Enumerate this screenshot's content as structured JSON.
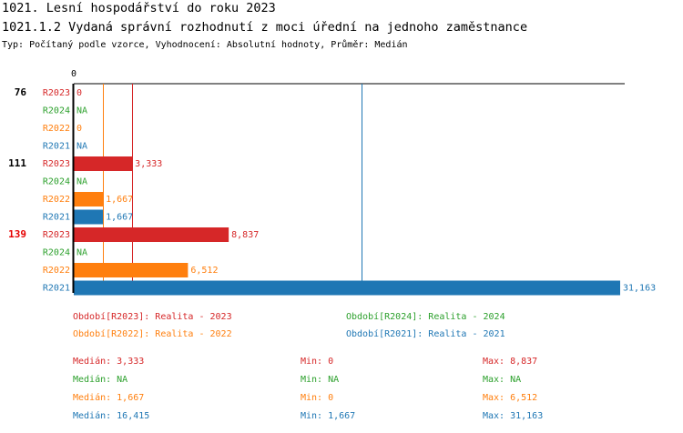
{
  "header": {
    "title": "1021. Lesní hospodářství do roku 2023",
    "subtitle": "1021.1.2 Vydaná správní rozhodnutí z moci úřední na jednoho zaměstnance",
    "type_line": "Typ: Počítaný podle vzorce, Vyhodnocení: Absolutní hodnoty, Průměr: Medián"
  },
  "colors": {
    "R2023": "#d62728",
    "R2024": "#2ca02c",
    "R2022": "#ff7f0e",
    "R2021": "#1f77b4",
    "highlight": "#e60000",
    "axis": "#000000"
  },
  "chart_data": {
    "type": "bar",
    "orientation": "horizontal",
    "axis_zero_label": "0",
    "xlim": [
      0,
      31163
    ],
    "series_order": [
      "R2023",
      "R2024",
      "R2022",
      "R2021"
    ],
    "groups": [
      {
        "label": "76",
        "highlight": false,
        "bars": [
          {
            "series": "R2023",
            "value": 0,
            "label": "0"
          },
          {
            "series": "R2024",
            "value": null,
            "label": "NA"
          },
          {
            "series": "R2022",
            "value": 0,
            "label": "0"
          },
          {
            "series": "R2021",
            "value": null,
            "label": "NA"
          }
        ]
      },
      {
        "label": "111",
        "highlight": false,
        "bars": [
          {
            "series": "R2023",
            "value": 3333,
            "label": "3,333"
          },
          {
            "series": "R2024",
            "value": null,
            "label": "NA"
          },
          {
            "series": "R2022",
            "value": 1667,
            "label": "1,667"
          },
          {
            "series": "R2021",
            "value": 1667,
            "label": "1,667"
          }
        ]
      },
      {
        "label": "139",
        "highlight": true,
        "bars": [
          {
            "series": "R2023",
            "value": 8837,
            "label": "8,837"
          },
          {
            "series": "R2024",
            "value": null,
            "label": "NA"
          },
          {
            "series": "R2022",
            "value": 6512,
            "label": "6,512"
          },
          {
            "series": "R2021",
            "value": 31163,
            "label": "31,163"
          }
        ]
      }
    ],
    "median_lines": [
      {
        "series": "R2023",
        "value": 3333
      },
      {
        "series": "R2022",
        "value": 1667
      },
      {
        "series": "R2021",
        "value": 16415
      }
    ]
  },
  "legend": [
    {
      "series": "R2023",
      "text": "Období[R2023]: Realita - 2023"
    },
    {
      "series": "R2024",
      "text": "Období[R2024]: Realita - 2024"
    },
    {
      "series": "R2022",
      "text": "Období[R2022]: Realita - 2022"
    },
    {
      "series": "R2021",
      "text": "Období[R2021]: Realita - 2021"
    }
  ],
  "stats": [
    {
      "series": "R2023",
      "median": "Medián: 3,333",
      "min": "Min: 0",
      "max": "Max: 8,837"
    },
    {
      "series": "R2024",
      "median": "Medián: NA",
      "min": "Min: NA",
      "max": "Max: NA"
    },
    {
      "series": "R2022",
      "median": "Medián: 1,667",
      "min": "Min: 0",
      "max": "Max: 6,512"
    },
    {
      "series": "R2021",
      "median": "Medián: 16,415",
      "min": "Min: 1,667",
      "max": "Max: 31,163"
    }
  ]
}
